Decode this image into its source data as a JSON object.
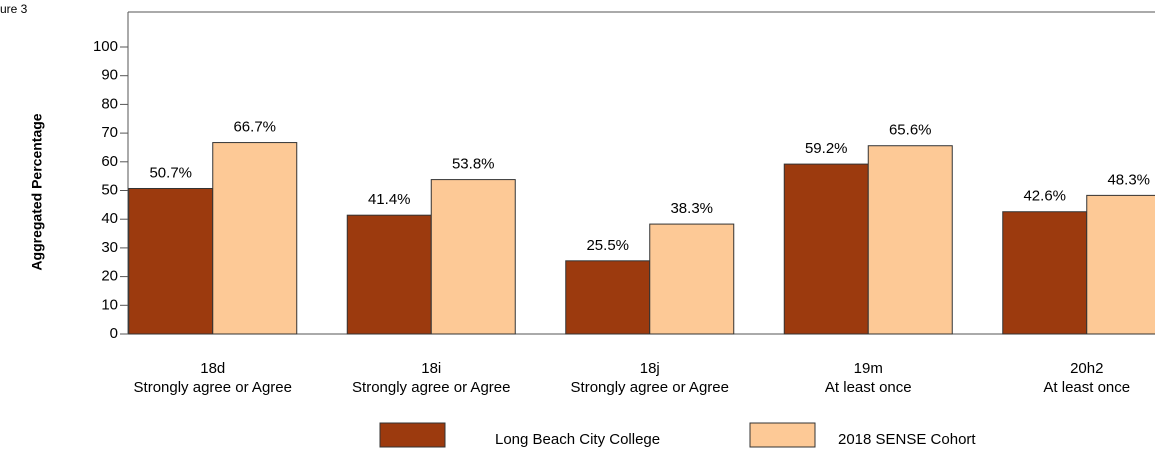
{
  "chart_data": {
    "type": "bar",
    "caption": "ure 3",
    "y_label": "Aggregated Percentage",
    "categories": [
      [
        "18d",
        "Strongly agree or Agree"
      ],
      [
        "18i",
        "Strongly agree or Agree"
      ],
      [
        "18j",
        "Strongly agree or Agree"
      ],
      [
        "19m",
        "At least once"
      ],
      [
        "20h2",
        "At least once"
      ]
    ],
    "series": [
      {
        "name": "Long Beach City College",
        "color": "#9c3a0e",
        "values": [
          50.7,
          41.4,
          25.5,
          59.2,
          42.6
        ],
        "value_labels": [
          "50.7%",
          "41.4%",
          "25.5%",
          "59.2%",
          "42.6%"
        ]
      },
      {
        "name": "2018 SENSE Cohort",
        "color": "#fdc996",
        "values": [
          66.7,
          53.8,
          38.3,
          65.6,
          48.3
        ],
        "value_labels": [
          "66.7%",
          "53.8%",
          "38.3%",
          "65.6%",
          "48.3%"
        ]
      }
    ],
    "ylim": [
      0,
      100
    ],
    "yticks": [
      0,
      10,
      20,
      30,
      40,
      50,
      60,
      70,
      80,
      90,
      100
    ],
    "legend": "bottom"
  }
}
